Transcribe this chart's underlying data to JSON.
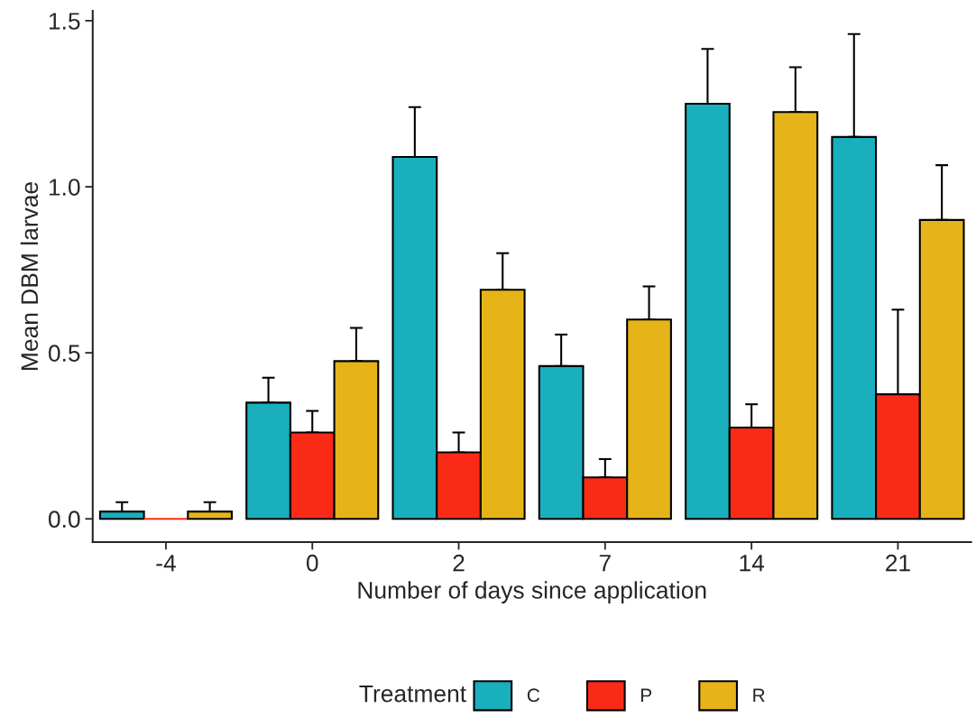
{
  "chart_data": {
    "type": "bar",
    "xlabel": "Number of days since application",
    "ylabel": "Mean DBM larvae",
    "legend_title": "Treatment",
    "categories": [
      "-4",
      "0",
      "2",
      "7",
      "14",
      "21"
    ],
    "series": [
      {
        "name": "C",
        "color": "#1aafbd",
        "values": [
          0.022,
          0.35,
          1.09,
          0.46,
          1.25,
          1.15
        ],
        "errors": [
          [
            0.022,
            0.05
          ],
          [
            0.35,
            0.425
          ],
          [
            1.09,
            1.24
          ],
          [
            0.46,
            0.555
          ],
          [
            1.25,
            1.415
          ],
          [
            1.15,
            1.46
          ]
        ]
      },
      {
        "name": "P",
        "color": "#fa2b16",
        "values": [
          0,
          0.26,
          0.2,
          0.125,
          0.275,
          0.375
        ],
        "errors": [
          null,
          [
            0.26,
            0.325
          ],
          [
            0.2,
            0.26
          ],
          [
            0.125,
            0.18
          ],
          [
            0.275,
            0.345
          ],
          [
            0.375,
            0.63
          ]
        ]
      },
      {
        "name": "R",
        "color": "#e6b418",
        "values": [
          0.022,
          0.475,
          0.69,
          0.6,
          1.225,
          0.9
        ],
        "errors": [
          [
            0.022,
            0.05
          ],
          [
            0.475,
            0.575
          ],
          [
            0.69,
            0.8
          ],
          [
            0.6,
            0.7
          ],
          [
            1.225,
            1.36
          ],
          [
            0.9,
            1.065
          ]
        ]
      }
    ],
    "ylim": [
      -0.07,
      1.53
    ],
    "yticks": [
      {
        "value": 0,
        "label": "0.0"
      },
      {
        "value": 0.5,
        "label": "0.5"
      },
      {
        "value": 1.0,
        "label": "1.0"
      },
      {
        "value": 1.5,
        "label": "1.5"
      }
    ],
    "grid": false,
    "legend": "bottom"
  }
}
